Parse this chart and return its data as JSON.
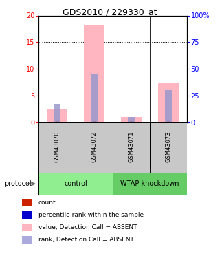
{
  "title": "GDS2010 / 229330_at",
  "samples": [
    "GSM43070",
    "GSM43072",
    "GSM43071",
    "GSM43073"
  ],
  "groups": [
    "control",
    "control",
    "WTAP knockdown",
    "WTAP knockdown"
  ],
  "bar_values_pink": [
    2.5,
    18.3,
    1.0,
    7.5
  ],
  "bar_values_blue_pct": [
    17.5,
    45.0,
    5.0,
    30.0
  ],
  "ylim_left": [
    0,
    20
  ],
  "ylim_right": [
    0,
    100
  ],
  "yticks_left": [
    0,
    5,
    10,
    15,
    20
  ],
  "yticks_right": [
    0,
    25,
    50,
    75,
    100
  ],
  "ytick_labels_right": [
    "0",
    "25",
    "50",
    "75",
    "100%"
  ],
  "bar_color_pink": "#FFB6C1",
  "bar_color_blue": "#9999CC",
  "bar_color_red": "#CC2200",
  "sample_box_color": "#C8C8C8",
  "control_color": "#90EE90",
  "wtap_color": "#66CC66",
  "legend_items": [
    {
      "color": "#CC2200",
      "label": "count"
    },
    {
      "color": "#0000CC",
      "label": "percentile rank within the sample"
    },
    {
      "color": "#FFB6C1",
      "label": "value, Detection Call = ABSENT"
    },
    {
      "color": "#AAAADD",
      "label": "rank, Detection Call = ABSENT"
    }
  ],
  "protocol_label": "protocol"
}
